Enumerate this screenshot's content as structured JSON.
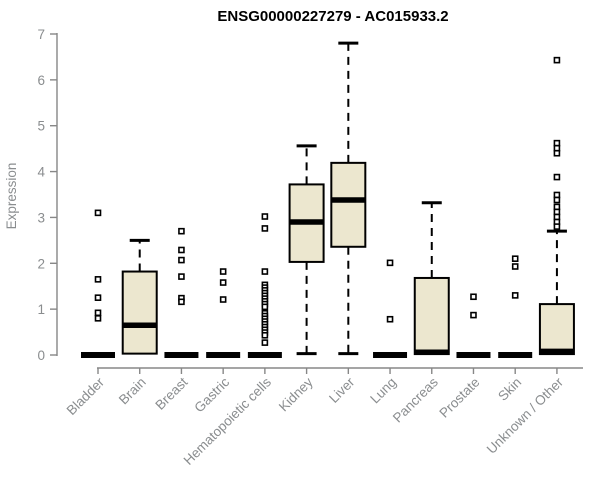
{
  "title": "ENSG00000227279 - AC015933.2",
  "chart_data": {
    "type": "boxplot",
    "title": "ENSG00000227279 - AC015933.2",
    "ylabel": "Expression",
    "xlabel": "",
    "ylim": [
      0,
      7
    ],
    "yticks": [
      "0",
      "1",
      "2",
      "3",
      "4",
      "5",
      "6",
      "7"
    ],
    "grid": false,
    "legend": "none",
    "colors": {
      "box_fill": "#ece7cf",
      "box_stroke": "#000000",
      "median": "#000000",
      "whisker": "#000000",
      "outlier_stroke": "#000000",
      "outlier_fill": "#ffffff",
      "axis": "#878787",
      "tick_label": "#8a8d8f",
      "title": "#000000",
      "background": "#ffffff"
    },
    "categories": [
      "Bladder",
      "Brain",
      "Breast",
      "Gastric",
      "Hematopoietic cells",
      "Kidney",
      "Liver",
      "Lung",
      "Pancreas",
      "Prostate",
      "Skin",
      "Unknown / Other"
    ],
    "series": [
      {
        "category": "Bladder",
        "q1": 0,
        "median": 0,
        "q3": 0,
        "whisker_low": 0,
        "whisker_high": 0,
        "outliers": [
          3.1,
          1.65,
          1.25,
          0.92,
          0.8
        ]
      },
      {
        "category": "Brain",
        "q1": 0.03,
        "median": 0.65,
        "q3": 1.82,
        "whisker_low": 0.03,
        "whisker_high": 2.5,
        "outliers": []
      },
      {
        "category": "Breast",
        "q1": 0,
        "median": 0,
        "q3": 0,
        "whisker_low": 0,
        "whisker_high": 0,
        "outliers": [
          2.7,
          2.29,
          2.07,
          1.71,
          1.24,
          1.16
        ]
      },
      {
        "category": "Gastric",
        "q1": 0,
        "median": 0,
        "q3": 0,
        "whisker_low": 0,
        "whisker_high": 0,
        "outliers": [
          1.82,
          1.58,
          1.21
        ]
      },
      {
        "category": "Hematopoietic cells",
        "q1": 0,
        "median": 0,
        "q3": 0,
        "whisker_low": 0,
        "whisker_high": 0,
        "outliers": [
          3.02,
          2.76,
          1.82,
          1.53,
          1.47,
          1.41,
          1.35,
          1.29,
          1.23,
          1.17,
          1.11,
          1.05,
          0.91,
          0.85,
          0.79,
          0.73,
          0.67,
          0.61,
          0.55,
          0.49,
          0.43,
          0.27
        ]
      },
      {
        "category": "Kidney",
        "q1": 2.03,
        "median": 2.9,
        "q3": 3.72,
        "whisker_low": 0.03,
        "whisker_high": 4.56,
        "outliers": []
      },
      {
        "category": "Liver",
        "q1": 2.36,
        "median": 3.38,
        "q3": 4.19,
        "whisker_low": 0.03,
        "whisker_high": 6.8,
        "outliers": []
      },
      {
        "category": "Lung",
        "q1": 0,
        "median": 0,
        "q3": 0,
        "whisker_low": 0,
        "whisker_high": 0,
        "outliers": [
          2.01,
          0.78
        ]
      },
      {
        "category": "Pancreas",
        "q1": 0.02,
        "median": 0.06,
        "q3": 1.68,
        "whisker_low": 0.02,
        "whisker_high": 3.32,
        "outliers": []
      },
      {
        "category": "Prostate",
        "q1": 0,
        "median": 0,
        "q3": 0,
        "whisker_low": 0,
        "whisker_high": 0,
        "outliers": [
          1.27,
          0.87
        ]
      },
      {
        "category": "Skin",
        "q1": 0,
        "median": 0,
        "q3": 0,
        "whisker_low": 0,
        "whisker_high": 0,
        "outliers": [
          2.1,
          1.93,
          1.3
        ]
      },
      {
        "category": "Unknown / Other",
        "q1": 0.02,
        "median": 0.08,
        "q3": 1.11,
        "whisker_low": 0.02,
        "whisker_high": 2.7,
        "outliers": [
          6.43,
          4.62,
          4.51,
          4.4,
          3.88,
          3.49,
          3.38,
          3.23,
          3.12,
          3.01,
          2.9,
          2.8
        ]
      }
    ]
  }
}
